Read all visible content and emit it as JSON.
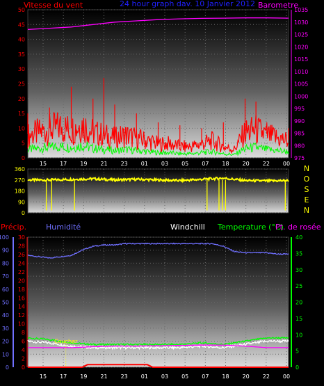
{
  "colors": {
    "wind": "#ff0000",
    "gust_band": "#00ff00",
    "pressure": "#ff00ff",
    "wind_dir": "#ffff00",
    "humidity": "#7070ff",
    "precip": "#ff0000",
    "windchill": "#ffffff",
    "temperature": "#00ff00",
    "dewpoint": "#ff00ff",
    "sunset": "#ffff00"
  },
  "header": {
    "title": "24 hour graph dav. 10 Janvier 2012"
  },
  "chart_data": [
    {
      "type": "line",
      "panel": "wind-pressure",
      "xlabel": "",
      "x_ticks": [
        "15",
        "17",
        "19",
        "21",
        "23",
        "01",
        "03",
        "05",
        "07",
        "18",
        "20",
        "22",
        "00"
      ],
      "left_axis_label": "Vitesse du vent",
      "left_ylim": [
        0,
        50
      ],
      "left_ticks": [
        0,
        5,
        10,
        15,
        20,
        25,
        30,
        35,
        40,
        45,
        50
      ],
      "right_axis_label": "Barometre",
      "right_ylim": [
        975,
        1035
      ],
      "right_ticks": [
        975,
        980,
        985,
        990,
        995,
        1000,
        1005,
        1010,
        1015,
        1020,
        1025,
        1030,
        1035
      ],
      "grid": true,
      "series": [
        {
          "name": "Vitesse du vent",
          "axis": "left",
          "x_hours": [
            0,
            1,
            2,
            3,
            4,
            5,
            6,
            7,
            8,
            9,
            10,
            11,
            12,
            13,
            14,
            15,
            16,
            17,
            18,
            19,
            20,
            21,
            22,
            23,
            24
          ],
          "values": [
            8,
            9,
            10,
            11,
            10,
            12,
            9,
            8,
            7,
            8,
            7,
            6,
            5,
            5,
            4,
            4,
            5,
            6,
            4,
            3,
            9,
            10,
            8,
            7,
            6
          ]
        },
        {
          "name": "Rafales",
          "axis": "left",
          "x_hours": [
            0,
            2,
            4,
            6,
            7,
            8,
            10,
            12,
            14,
            16,
            18,
            20,
            21,
            22,
            24
          ],
          "values": [
            15,
            17,
            24,
            20,
            27,
            18,
            15,
            12,
            11,
            10,
            12,
            20,
            19,
            12,
            10
          ]
        },
        {
          "name": "Barometre",
          "axis": "right",
          "x_hours": [
            0,
            2,
            4,
            6,
            8,
            10,
            12,
            14,
            16,
            18,
            20,
            22,
            24
          ],
          "values": [
            1027,
            1027.5,
            1028,
            1029,
            1030,
            1030.5,
            1031,
            1031.3,
            1031.5,
            1031.6,
            1031.7,
            1031.7,
            1031.6
          ]
        }
      ]
    },
    {
      "type": "line",
      "panel": "wind-direction",
      "x_ticks": [
        "15",
        "17",
        "19",
        "21",
        "23",
        "01",
        "03",
        "05",
        "07",
        "18",
        "20",
        "22",
        "00"
      ],
      "left_ylim": [
        0,
        360
      ],
      "left_ticks": [
        0,
        90,
        180,
        270,
        360
      ],
      "right_labels": [
        "N",
        "O",
        "S",
        "E",
        "N"
      ],
      "series": [
        {
          "name": "Direction",
          "x_hours": [
            0,
            2,
            4,
            6,
            8,
            10,
            12,
            14,
            16,
            18,
            20,
            22,
            24
          ],
          "values": [
            270,
            270,
            275,
            280,
            270,
            275,
            270,
            265,
            275,
            285,
            265,
            262,
            265
          ]
        }
      ]
    },
    {
      "type": "line",
      "panel": "temp-humidity",
      "x_ticks": [
        "15",
        "17",
        "19",
        "21",
        "23",
        "01",
        "03",
        "05",
        "07",
        "18",
        "20",
        "22",
        "00"
      ],
      "left_axis_labels": [
        "Précip.",
        "Humidité"
      ],
      "humidity_ylim": [
        0,
        100
      ],
      "humidity_ticks": [
        0,
        10,
        20,
        30,
        40,
        50,
        60,
        70,
        80,
        90,
        100
      ],
      "precip_ylim": [
        0,
        30
      ],
      "precip_ticks": [
        0,
        2,
        4,
        6,
        8,
        10,
        12,
        14,
        16,
        18,
        20,
        22,
        24,
        26,
        28,
        30
      ],
      "right_axis_labels": [
        "Windchill",
        "Temperature (°C)",
        "Pt. de rosée"
      ],
      "temp_ylim": [
        0,
        40
      ],
      "temp_ticks": [
        0,
        5,
        10,
        15,
        20,
        25,
        30,
        35,
        40
      ],
      "annotation": "Coucher",
      "series": [
        {
          "name": "Humidité",
          "x_hours": [
            0,
            1,
            2,
            3,
            4,
            5,
            6,
            7,
            8,
            9,
            10,
            11,
            12,
            13,
            14,
            15,
            16,
            17,
            18,
            19,
            20,
            21,
            22,
            23,
            24
          ],
          "values": [
            86,
            85,
            84,
            85,
            86,
            90,
            93,
            94,
            94,
            95,
            95,
            95,
            95,
            95,
            95,
            95,
            95,
            95,
            93,
            89,
            88,
            88,
            88,
            87,
            87
          ]
        },
        {
          "name": "Temperature",
          "x_hours": [
            0,
            2,
            4,
            6,
            8,
            10,
            12,
            14,
            16,
            18,
            20,
            22,
            24
          ],
          "values": [
            9,
            8.5,
            7.5,
            7,
            7,
            7,
            7,
            7,
            7.5,
            7,
            8,
            9,
            9
          ]
        },
        {
          "name": "Windchill",
          "x_hours": [
            0,
            2,
            4,
            6,
            8,
            10,
            12,
            14,
            16,
            18,
            20,
            22,
            24
          ],
          "values": [
            8,
            7.5,
            6.5,
            6,
            6,
            6,
            6,
            6,
            6.5,
            6,
            7,
            8,
            8
          ]
        },
        {
          "name": "Pt. de rosée",
          "x_hours": [
            0,
            2,
            4,
            6,
            8,
            10,
            12,
            14,
            16,
            18,
            20,
            22,
            24
          ],
          "values": [
            6,
            6,
            6,
            6.3,
            6.5,
            6.5,
            6.6,
            6.7,
            6.8,
            6.8,
            6.5,
            6,
            6
          ]
        },
        {
          "name": "Précip.",
          "x_hours": [
            0,
            5,
            5.5,
            11,
            11.5,
            24
          ],
          "values": [
            0,
            0,
            0.6,
            0.6,
            0,
            0
          ]
        }
      ]
    }
  ]
}
